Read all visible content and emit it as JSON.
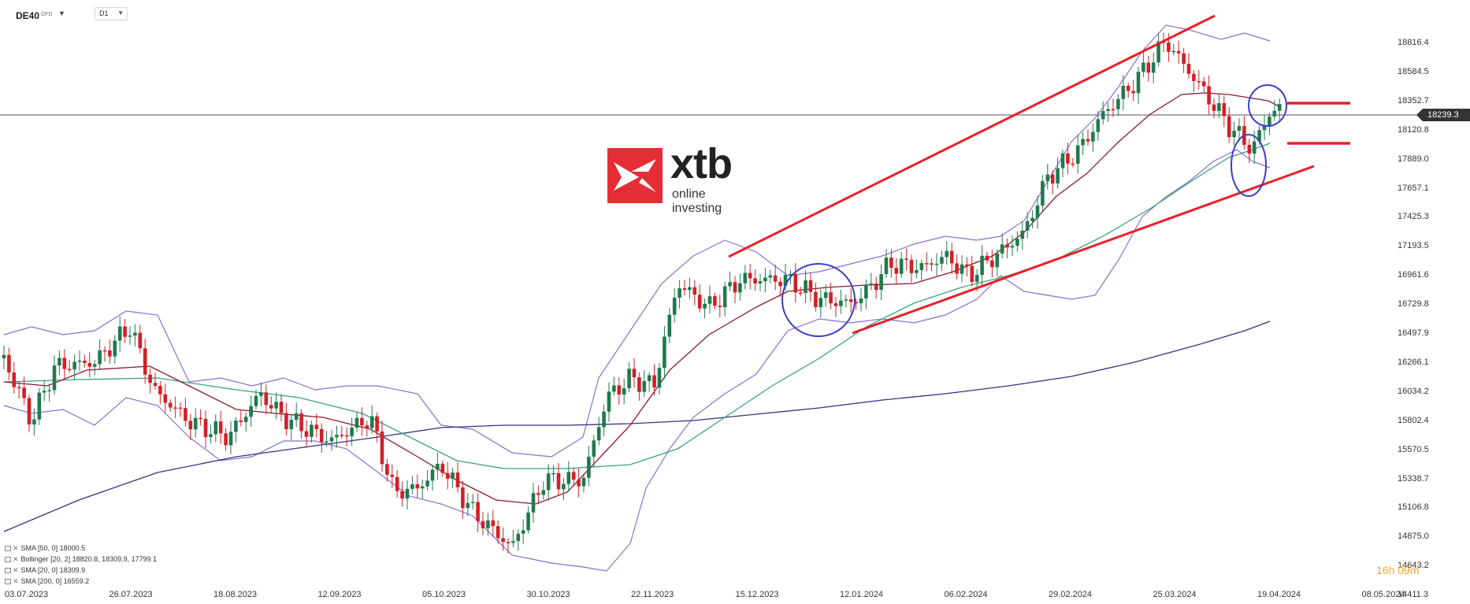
{
  "header": {
    "symbol": "DE40",
    "symbol_type": "CFD",
    "timeframe": "D1"
  },
  "logo": {
    "wordmark": "xtb",
    "tagline": "online investing"
  },
  "price_axis": {
    "labels": [
      "18816.4",
      "18584.5",
      "18352.7",
      "18120.8",
      "17889.0",
      "17657.1",
      "17425.3",
      "17193.5",
      "16961.6",
      "16729.8",
      "16497.9",
      "16266.1",
      "16034.2",
      "15802.4",
      "15570.5",
      "15338.7",
      "15106.8",
      "14875.0",
      "14643.2",
      "14411.3"
    ],
    "current_price": "18239.3"
  },
  "date_axis": {
    "labels": [
      "03.07.2023",
      "26.07.2023",
      "18.08.2023",
      "12.09.2023",
      "05.10.2023",
      "30.10.2023",
      "22.11.2023",
      "15.12.2023",
      "12.01.2024",
      "06.02.2024",
      "29.02.2024",
      "25.03.2024",
      "19.04.2024",
      "08.05.2024"
    ]
  },
  "indicators": [
    {
      "label": "SMA  [50, 0]  18000.5"
    },
    {
      "label": "Bollinger  [20, 2]  18820.8,  18309.9,  17799.1"
    },
    {
      "label": "SMA  [20, 0]  18309.9"
    },
    {
      "label": "SMA  [200, 0]  16559.2"
    }
  ],
  "timer": {
    "hours": "16",
    "h_unit": "h",
    "minutes": "09",
    "m_unit": "m"
  },
  "colors": {
    "bull": "#1f7a4d",
    "bear": "#d31f26",
    "sma20": "#8b1a2b",
    "sma50": "#3aa37a",
    "sma200": "#33337f",
    "bollinger": "#8a6fd0",
    "trendline": "#e8202a",
    "circle": "#3a3fc0",
    "brand": "#e52d35"
  }
}
